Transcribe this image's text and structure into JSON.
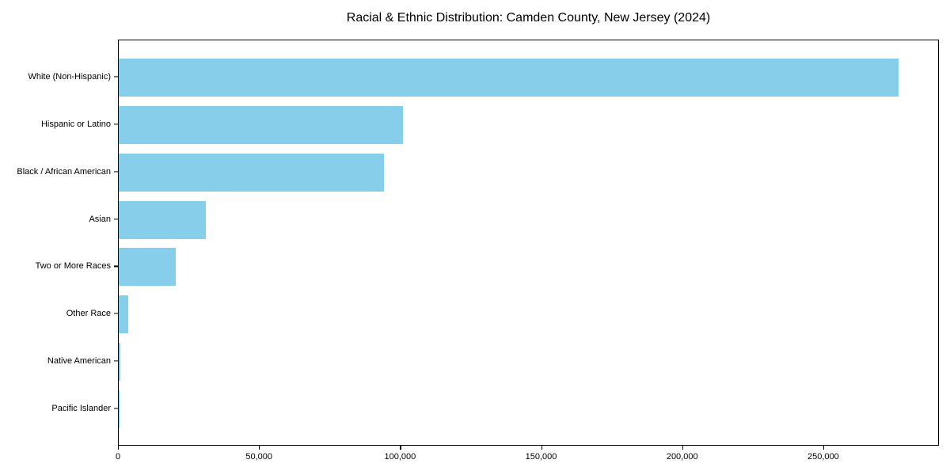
{
  "chart_data": {
    "type": "bar",
    "orientation": "horizontal",
    "title": "Racial & Ethnic Distribution: Camden County, New Jersey (2024)",
    "xlabel": "",
    "ylabel": "",
    "categories": [
      "White (Non-Hispanic)",
      "Hispanic or Latino",
      "Black / African American",
      "Asian",
      "Two or More Races",
      "Other Race",
      "Native American",
      "Pacific Islander"
    ],
    "values": [
      277000,
      101000,
      94300,
      31000,
      20200,
      3500,
      500,
      100
    ],
    "xlim": [
      0,
      291000
    ],
    "x_ticks": [
      0,
      50000,
      100000,
      150000,
      200000,
      250000
    ],
    "x_tick_labels": [
      "0",
      "50,000",
      "100,000",
      "150,000",
      "200,000",
      "250,000"
    ],
    "bar_color": "#87CEEB",
    "spine_color": "#000000",
    "background_color": "#ffffff",
    "grid": false,
    "legend": null
  }
}
